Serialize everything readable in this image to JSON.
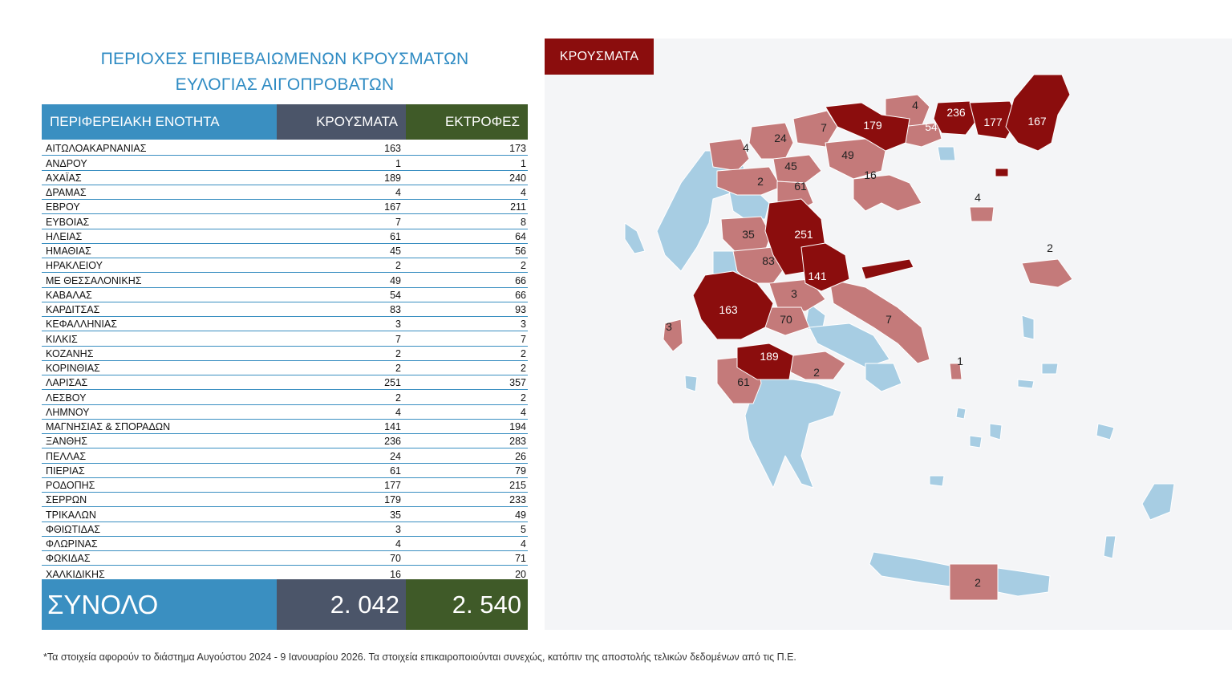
{
  "title": {
    "line1": "ΠΕΡΙΟΧΕΣ ΕΠΙΒΕΒΑΙΩΜΕΝΩΝ ΚΡΟΥΣΜΑΤΩΝ",
    "line2": "ΕΥΛΟΓΙΑΣ ΑΙΓΟΠΡΟΒΑΤΩΝ"
  },
  "table": {
    "headers": {
      "region": "ΠΕΡΙΦΕΡΕΙΑΚΗ ΕΝΟΤΗΤΑ",
      "cases": "ΚΡΟΥΣΜΑΤΑ",
      "farms": "ΕΚΤΡΟΦΕΣ"
    },
    "rows": [
      {
        "region": "ΑΙΤΩΛΟΑΚΑΡΝΑΝΙΑΣ",
        "cases": "163",
        "farms": "173"
      },
      {
        "region": "ΑΝΔΡΟΥ",
        "cases": "1",
        "farms": "1"
      },
      {
        "region": "ΑΧΑΪΑΣ",
        "cases": "189",
        "farms": "240"
      },
      {
        "region": "ΔΡΑΜΑΣ",
        "cases": "4",
        "farms": "4"
      },
      {
        "region": "ΕΒΡΟΥ",
        "cases": "167",
        "farms": "211"
      },
      {
        "region": "ΕΥΒΟΙΑΣ",
        "cases": "7",
        "farms": "8"
      },
      {
        "region": "ΗΛΕΙΑΣ",
        "cases": "61",
        "farms": "64"
      },
      {
        "region": "ΗΜΑΘΙΑΣ",
        "cases": "45",
        "farms": "56"
      },
      {
        "region": "ΗΡΑΚΛΕΙΟΥ",
        "cases": "2",
        "farms": "2"
      },
      {
        "region": "ΜΕ ΘΕΣΣΑΛΟΝΙΚΗΣ",
        "cases": "49",
        "farms": "66"
      },
      {
        "region": "ΚΑΒΑΛΑΣ",
        "cases": "54",
        "farms": "66"
      },
      {
        "region": "ΚΑΡΔΙΤΣΑΣ",
        "cases": "83",
        "farms": "93"
      },
      {
        "region": "ΚΕΦΑΛΛΗΝΙΑΣ",
        "cases": "3",
        "farms": "3"
      },
      {
        "region": "ΚΙΛΚΙΣ",
        "cases": "7",
        "farms": "7"
      },
      {
        "region": "ΚΟΖΑΝΗΣ",
        "cases": "2",
        "farms": "2"
      },
      {
        "region": "ΚΟΡΙΝΘΙΑΣ",
        "cases": "2",
        "farms": "2"
      },
      {
        "region": "ΛΑΡΙΣΑΣ",
        "cases": "251",
        "farms": "357"
      },
      {
        "region": "ΛΕΣΒΟΥ",
        "cases": "2",
        "farms": "2"
      },
      {
        "region": "ΛΗΜΝΟΥ",
        "cases": "4",
        "farms": "4"
      },
      {
        "region": "ΜΑΓΝΗΣΙΑΣ & ΣΠΟΡΑΔΩΝ",
        "cases": "141",
        "farms": "194"
      },
      {
        "region": "ΞΑΝΘΗΣ",
        "cases": "236",
        "farms": "283"
      },
      {
        "region": "ΠΕΛΛΑΣ",
        "cases": "24",
        "farms": "26"
      },
      {
        "region": "ΠΙΕΡΙΑΣ",
        "cases": "61",
        "farms": "79"
      },
      {
        "region": "ΡΟΔΟΠΗΣ",
        "cases": "177",
        "farms": "215"
      },
      {
        "region": "ΣΕΡΡΩΝ",
        "cases": "179",
        "farms": "233"
      },
      {
        "region": "ΤΡΙΚΑΛΩΝ",
        "cases": "35",
        "farms": "49"
      },
      {
        "region": "ΦΘΙΩΤΙΔΑΣ",
        "cases": "3",
        "farms": "5"
      },
      {
        "region": "ΦΛΩΡΙΝΑΣ",
        "cases": "4",
        "farms": "4"
      },
      {
        "region": "ΦΩΚΙΔΑΣ",
        "cases": "70",
        "farms": "71"
      },
      {
        "region": "ΧΑΛΚΙΔΙΚΗΣ",
        "cases": "16",
        "farms": "20"
      }
    ],
    "total": {
      "label": "ΣΥΝΟΛΟ",
      "cases": "2. 042",
      "farms": "2. 540"
    }
  },
  "map": {
    "legend_label": "ΚΡΟΥΣΜΑΤΑ",
    "colors": {
      "high": "#8b0d0d",
      "low": "#c47a7a",
      "none": "#a7cde3",
      "background": "#f4f5f7"
    },
    "labels": [
      "179",
      "4",
      "236",
      "54",
      "177",
      "167",
      "7",
      "24",
      "4",
      "49",
      "45",
      "16",
      "2",
      "61",
      "4",
      "35",
      "251",
      "83",
      "141",
      "2",
      "163",
      "3",
      "70",
      "7",
      "3",
      "189",
      "2",
      "1",
      "61",
      "2"
    ]
  },
  "footnote": "*Τα στοιχεία αφορούν το διάστημα Αυγούστου 2024 - 9 Ιανουαρίου 2026. Τα στοιχεία επικαιροποιούνται συνεχώς, κατόπιν της αποστολής τελικών δεδομένων από τις Π.Ε."
}
